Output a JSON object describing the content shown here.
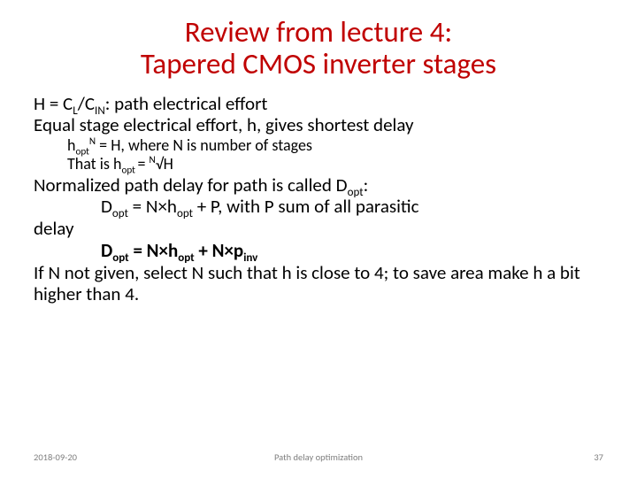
{
  "colors": {
    "accent": "#c00000",
    "body": "#000000",
    "footer": "#7f7f7f",
    "bg": "#ffffff"
  },
  "typography": {
    "title_fontsize": 33,
    "body_fontsize": 21,
    "sub_fontsize": 18,
    "footer_fontsize": 10.5,
    "font_family": "Calibri"
  },
  "title": {
    "line1": "Review from lecture 4:",
    "line2": "Tapered CMOS inverter stages"
  },
  "lines": {
    "l1a": "H = C",
    "l1b": "L",
    "l1c": "/C",
    "l1d": "IN",
    "l1e": ": path electrical effort",
    "l2": "Equal stage electrical effort, h, gives shortest delay",
    "l3a": "h",
    "l3b": "opt",
    "l3c": "N",
    "l3d": " = H, where N is number of stages",
    "l4a": "That is h",
    "l4b": "opt ",
    "l4c": "= ",
    "l4d": "N",
    "l4e": "√H",
    "l5a": "Normalized path delay for path is called D",
    "l5b": "opt",
    "l5c": ":",
    "l6a": "D",
    "l6b": "opt",
    "l6c": " = N×h",
    "l6d": "opt",
    "l6e": " + P, with P sum of all parasitic",
    "l7": "delay",
    "l8a": "D",
    "l8b": "opt",
    "l8c": " = N×h",
    "l8d": "opt",
    "l8e": " + N×p",
    "l8f": "inv",
    "l9": "If N not given, select N such that h is close to 4; to save area make h a bit higher than 4."
  },
  "footer": {
    "date": "2018-09-20",
    "title": "Path delay optimization",
    "pagenum": "37"
  }
}
